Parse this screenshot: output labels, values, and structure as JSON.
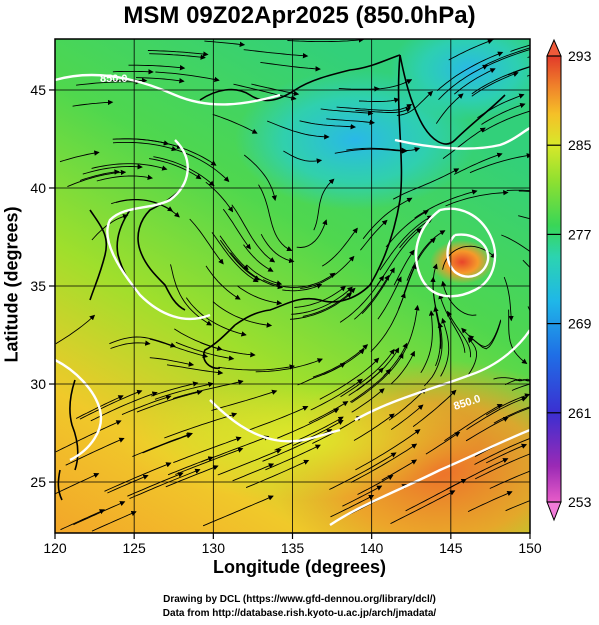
{
  "title": "MSM 09Z02Apr2025 (850.0hPa)",
  "x_axis": {
    "title": "Longitude (degrees)",
    "ticks": [
      "120",
      "125",
      "130",
      "135",
      "140",
      "145",
      "150"
    ],
    "values": [
      120,
      125,
      130,
      135,
      140,
      145,
      150
    ],
    "range": [
      120,
      150
    ]
  },
  "y_axis": {
    "title": "Latitude  (degrees)",
    "ticks": [
      "25",
      "30",
      "35",
      "40",
      "45"
    ],
    "values": [
      25,
      30,
      35,
      40,
      45
    ],
    "range": [
      22.4,
      47.6
    ]
  },
  "colorbar": {
    "ticks": [
      "293",
      "285",
      "277",
      "269",
      "261",
      "253"
    ],
    "min": 253,
    "max": 293,
    "colors": [
      "#e85cc8",
      "#9b2ab5",
      "#3b2fd1",
      "#1f6fe6",
      "#1fb7e8",
      "#2cd4b0",
      "#39d657",
      "#8fe030",
      "#d8e82a",
      "#f5c028",
      "#f0842a",
      "#e23a2a"
    ]
  },
  "contour_labels": [
    "850.0",
    "850.0"
  ],
  "footer": {
    "line1": "Drawing by DCL (https://www.gfd-dennou.org/library/dcl/)",
    "line2": "Data from http://database.rish.kyoto-u.ac.jp/arch/jmadata/"
  }
}
